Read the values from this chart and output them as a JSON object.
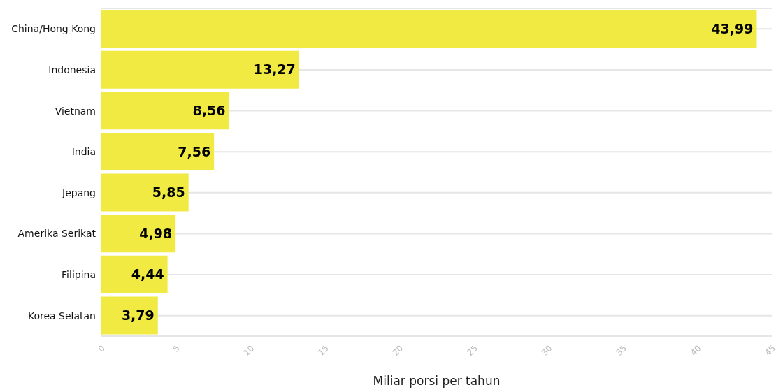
{
  "chart_data": {
    "type": "bar",
    "orientation": "horizontal",
    "xlabel": "Miliar porsi per tahun",
    "categories": [
      "China/Hong Kong",
      "Indonesia",
      "Vietnam",
      "India",
      "Jepang",
      "Amerika Serikat",
      "Filipina",
      "Korea Selatan"
    ],
    "values": [
      43.99,
      13.27,
      8.56,
      7.56,
      5.85,
      4.98,
      4.44,
      3.79
    ],
    "value_labels": [
      "43,99",
      "13,27",
      "8,56",
      "7,56",
      "5,85",
      "4,98",
      "4,44",
      "3,79"
    ],
    "color": "#f0ea42",
    "xlim": [
      0,
      45
    ],
    "xticks": [
      0,
      5,
      10,
      15,
      20,
      25,
      30,
      35,
      40,
      45
    ],
    "grid": "y"
  }
}
